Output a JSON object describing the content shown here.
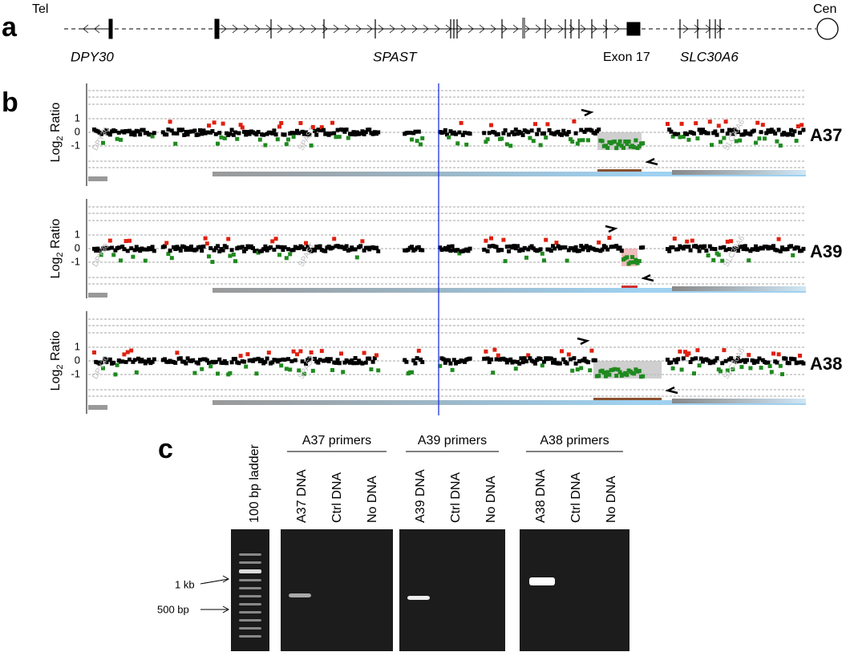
{
  "panels": {
    "a": {
      "label": "a",
      "tel": "Tel",
      "cen": "Cen",
      "genes": [
        "DPY30",
        "SPAST",
        "SLC30A6"
      ],
      "exon": "Exon 17"
    },
    "b": {
      "label": "b",
      "y_axis_label": {
        "text": "Log",
        "subscript": "2",
        "suffix": " Ratio"
      },
      "yticks": [
        "1",
        "0",
        "-1"
      ],
      "samples": [
        "A37",
        "A39",
        "A38"
      ],
      "track_genes": [
        "DPY30",
        "SPAST",
        "SLC30A6"
      ]
    },
    "c": {
      "label": "c",
      "ladder": "100 bp ladder",
      "groups": [
        {
          "title": "A37 primers",
          "lanes": [
            "A37 DNA",
            "Ctrl DNA",
            "No DNA"
          ]
        },
        {
          "title": "A39 primers",
          "lanes": [
            "A39 DNA",
            "Ctrl DNA",
            "No DNA"
          ]
        },
        {
          "title": "A38 primers",
          "lanes": [
            "A38 DNA",
            "Ctrl DNA",
            "No DNA"
          ]
        }
      ],
      "markers": [
        "1 kb",
        "500 bp"
      ]
    }
  }
}
